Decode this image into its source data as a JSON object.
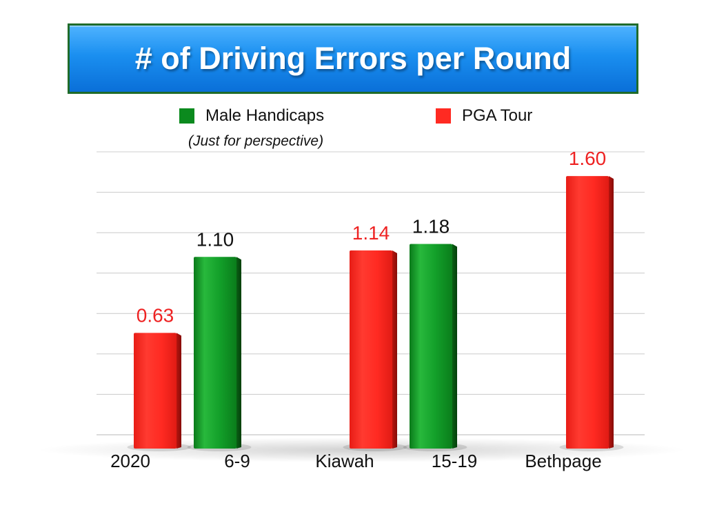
{
  "title": "# of Driving Errors per Round",
  "colors": {
    "male": "#0b8a1e",
    "pga": "#ff2a22",
    "male_label": "#111111",
    "pga_label": "#ee2222"
  },
  "legend": {
    "items": [
      {
        "label": "Male Handicaps",
        "series": "male"
      },
      {
        "label": "PGA Tour",
        "series": "pga"
      }
    ],
    "note": "(Just for perspective)"
  },
  "chart_data": {
    "type": "bar",
    "title": "# of Driving Errors per Round",
    "categories": [
      "2020",
      "6-9",
      "Kiawah",
      "15-19",
      "Bethpage"
    ],
    "series": [
      {
        "name": "Male Handicaps",
        "key": "male",
        "points": [
          {
            "category": "6-9",
            "value": 1.1
          },
          {
            "category": "15-19",
            "value": 1.18
          }
        ]
      },
      {
        "name": "PGA Tour",
        "key": "pga",
        "points": [
          {
            "category": "2020",
            "value": 0.63
          },
          {
            "category": "Kiawah",
            "value": 1.14
          },
          {
            "category": "Bethpage",
            "value": 1.6
          }
        ]
      }
    ],
    "bars": [
      {
        "category": "2020",
        "series": "pga",
        "value": 0.63,
        "label": "0.63"
      },
      {
        "category": "6-9",
        "series": "male",
        "value": 1.1,
        "label": "1.10"
      },
      {
        "category": "Kiawah",
        "series": "pga",
        "value": 1.14,
        "label": "1.14"
      },
      {
        "category": "15-19",
        "series": "male",
        "value": 1.18,
        "label": "1.18"
      },
      {
        "category": "Bethpage",
        "series": "pga",
        "value": 1.6,
        "label": "1.60"
      }
    ],
    "ylim": [
      0,
      1.75
    ],
    "grid": true,
    "legend_position": "top"
  }
}
